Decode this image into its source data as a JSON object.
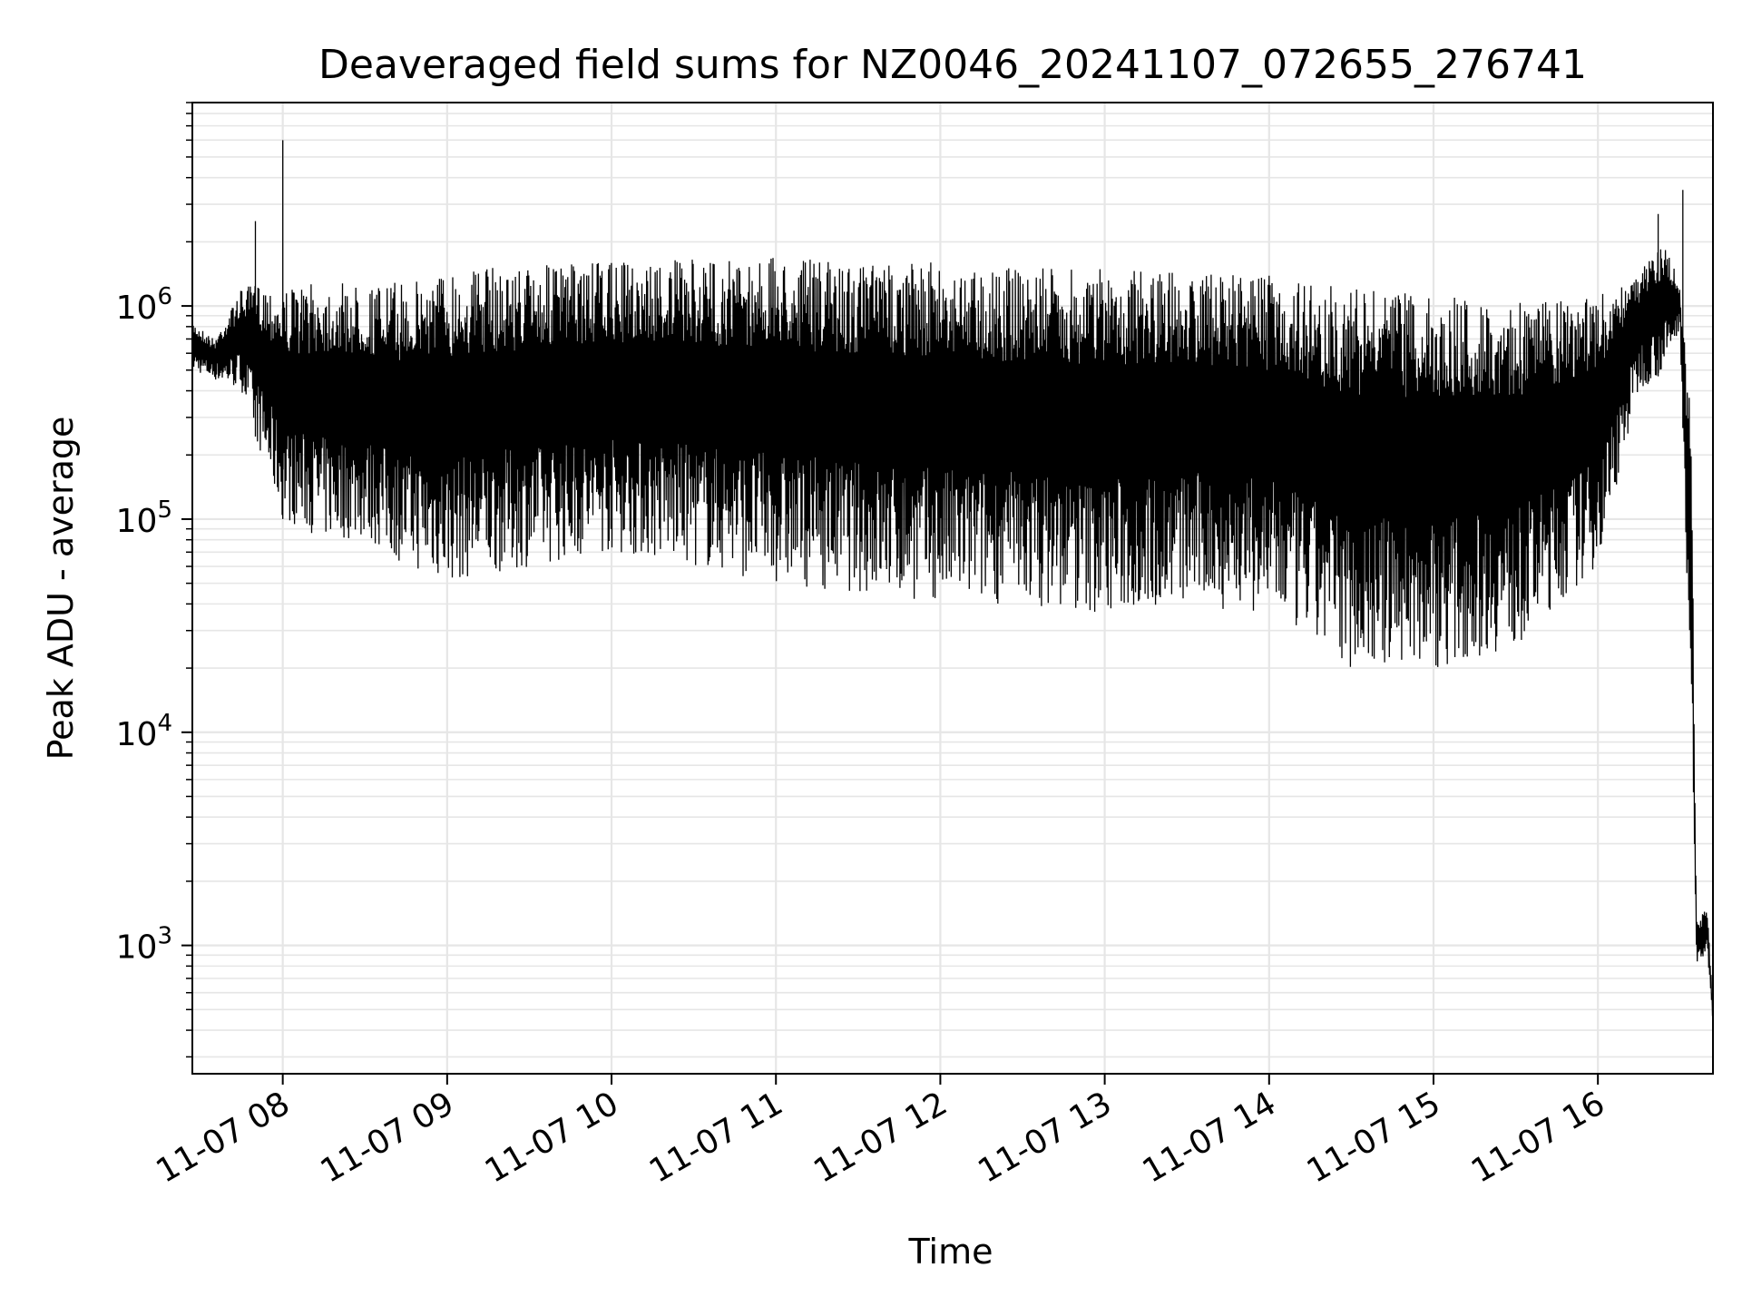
{
  "chart_data": {
    "type": "line",
    "title": "Deaveraged field sums for NZ0046_20241107_072655_276741",
    "xlabel": "Time",
    "ylabel": "Peak ADU - average",
    "yscale": "log",
    "ylim": [
      250,
      9000000
    ],
    "xlim": [
      "11-07 07:27",
      "11-07 16:42"
    ],
    "grid": true,
    "line_color": "#000000",
    "grid_color": "#e6e6e6",
    "x_ticks": [
      "11-07 08",
      "11-07 09",
      "11-07 10",
      "11-07 11",
      "11-07 12",
      "11-07 13",
      "11-07 14",
      "11-07 15",
      "11-07 16"
    ],
    "y_ticks": [
      {
        "value": 1000,
        "base": "10",
        "exp": "3"
      },
      {
        "value": 10000,
        "base": "10",
        "exp": "4"
      },
      {
        "value": 100000,
        "base": "10",
        "exp": "5"
      },
      {
        "value": 1000000,
        "base": "10",
        "exp": "6"
      }
    ],
    "envelope": {
      "x": [
        "11-07 07:27",
        "11-07 07:35",
        "11-07 07:45",
        "11-07 07:52",
        "11-07 08:00",
        "11-07 08:15",
        "11-07 08:30",
        "11-07 08:45",
        "11-07 09:00",
        "11-07 09:30",
        "11-07 10:00",
        "11-07 10:30",
        "11-07 11:00",
        "11-07 11:30",
        "11-07 12:00",
        "11-07 12:30",
        "11-07 13:00",
        "11-07 13:30",
        "11-07 14:00",
        "11-07 14:30",
        "11-07 15:00",
        "11-07 15:30",
        "11-07 16:00",
        "11-07 16:15",
        "11-07 16:25",
        "11-07 16:30",
        "11-07 16:34",
        "11-07 16:36",
        "11-07 16:40",
        "11-07 16:42"
      ],
      "high": [
        850000,
        700000,
        1200000,
        1300000,
        1200000,
        1300000,
        1250000,
        1300000,
        1500000,
        1550000,
        1600000,
        1650000,
        1700000,
        1600000,
        1600000,
        1500000,
        1500000,
        1450000,
        1400000,
        1200000,
        1150000,
        1050000,
        1100000,
        1500000,
        2000000,
        1200000,
        300000,
        1300,
        1500,
        500
      ],
      "low": [
        500000,
        450000,
        400000,
        200000,
        100000,
        80000,
        80000,
        60000,
        50000,
        60000,
        70000,
        60000,
        50000,
        45000,
        40000,
        40000,
        35000,
        40000,
        35000,
        20000,
        20000,
        25000,
        60000,
        400000,
        500000,
        800000,
        10000,
        800,
        900,
        400
      ]
    },
    "spikes": [
      {
        "x": "11-07 07:50",
        "y": 2500000
      },
      {
        "x": "11-07 08:00",
        "y": 6000000
      },
      {
        "x": "11-07 16:22",
        "y": 2700000
      },
      {
        "x": "11-07 16:31",
        "y": 3500000
      }
    ]
  }
}
